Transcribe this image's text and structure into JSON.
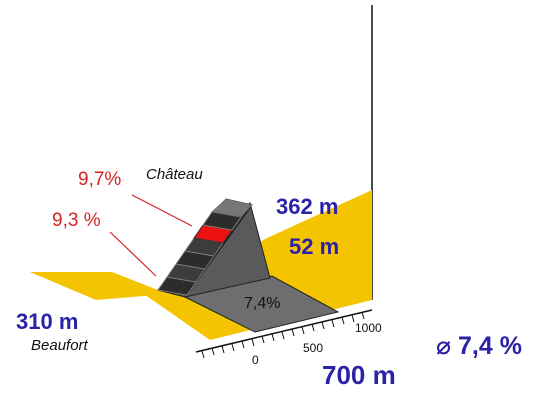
{
  "profile": {
    "summit_name": "Château",
    "summit_altitude": "362 m",
    "climb_height": "52 m",
    "start_name": "Beaufort",
    "start_altitude": "310 m",
    "length": "700 m",
    "average_gradient": "⌀ 7,4 %",
    "segment_gradients": [
      "9,7%",
      "9,3 %"
    ],
    "road_gradient": "7,4%",
    "axis_ticks": [
      "0",
      "500",
      "1000"
    ],
    "colors": {
      "road": "#f4c400",
      "ramp": "#555555",
      "highlight": "#ee1111",
      "label_blue": "#2b22a8",
      "label_red": "#d42424"
    }
  }
}
